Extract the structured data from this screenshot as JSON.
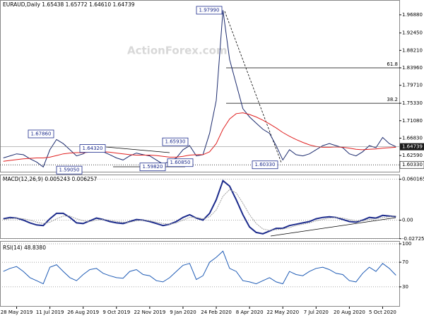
{
  "chart_data": [
    {
      "type": "line",
      "title": "EURAUD,Daily  1.65438 1.65772 1.64610 1.64739",
      "watermark": "ActionForex.com",
      "series": [
        {
          "name": "Close",
          "color": "#1c2b6e",
          "values": [
            1.62,
            1.625,
            1.63,
            1.628,
            1.618,
            1.61,
            1.598,
            1.64,
            1.665,
            1.655,
            1.64,
            1.625,
            1.63,
            1.64,
            1.643,
            1.635,
            1.628,
            1.62,
            1.615,
            1.625,
            1.632,
            1.628,
            1.625,
            1.615,
            1.605,
            1.612,
            1.62,
            1.64,
            1.65,
            1.625,
            1.628,
            1.68,
            1.76,
            1.9799,
            1.86,
            1.8,
            1.74,
            1.72,
            1.705,
            1.69,
            1.68,
            1.65,
            1.615,
            1.64,
            1.628,
            1.625,
            1.63,
            1.64,
            1.65,
            1.655,
            1.65,
            1.645,
            1.63,
            1.625,
            1.635,
            1.65,
            1.645,
            1.67,
            1.655,
            1.64739
          ]
        },
        {
          "name": "MA",
          "color": "#e02020",
          "values": [
            1.612,
            1.614,
            1.616,
            1.618,
            1.619,
            1.62,
            1.62,
            1.622,
            1.626,
            1.63,
            1.632,
            1.633,
            1.633,
            1.634,
            1.635,
            1.635,
            1.634,
            1.632,
            1.63,
            1.628,
            1.627,
            1.627,
            1.627,
            1.626,
            1.624,
            1.622,
            1.622,
            1.624,
            1.627,
            1.628,
            1.628,
            1.635,
            1.655,
            1.69,
            1.715,
            1.728,
            1.73,
            1.726,
            1.72,
            1.712,
            1.703,
            1.693,
            1.682,
            1.673,
            1.665,
            1.658,
            1.652,
            1.648,
            1.646,
            1.646,
            1.647,
            1.646,
            1.644,
            1.641,
            1.64,
            1.641,
            1.642,
            1.644,
            1.645,
            1.646
          ]
        }
      ],
      "ylim": [
        1.5865,
        2.0031
      ],
      "yticks": [
        {
          "value": 1.9688,
          "label": "1.96880"
        },
        {
          "value": 1.9245,
          "label": "1.92450"
        },
        {
          "value": 1.8821,
          "label": "1.88210"
        },
        {
          "value": 1.8396,
          "label": "1.83960"
        },
        {
          "value": 1.7971,
          "label": "1.79710"
        },
        {
          "value": 1.7533,
          "label": "1.75330"
        },
        {
          "value": 1.7108,
          "label": "1.71080"
        },
        {
          "value": 1.6683,
          "label": "1.66830"
        },
        {
          "value": 1.6259,
          "label": "1.62590"
        }
      ],
      "grid": false,
      "last_price": 1.64739,
      "support": {
        "value": 1.6033,
        "label": "1.60330"
      },
      "fib_levels": [
        {
          "value": 1.8396,
          "label": "61.8"
        },
        {
          "value": 1.7533,
          "label": "38.2"
        }
      ],
      "annotations": [
        {
          "value": 1.9799,
          "label": "1.97990"
        },
        {
          "value": 1.6786,
          "label": "1.67860"
        },
        {
          "value": 1.6432,
          "label": "1.64320"
        },
        {
          "value": 1.5905,
          "label": "1.59050"
        },
        {
          "value": 1.5982,
          "label": "1.59820"
        },
        {
          "value": 1.6085,
          "label": "1.60850"
        },
        {
          "value": 1.6593,
          "label": "1.65930"
        },
        {
          "value": 1.6033,
          "label": "1.60330"
        }
      ]
    },
    {
      "type": "line",
      "title": "MACD(12,26,9) 0.005243 0.006257",
      "series": [
        {
          "name": "MACD",
          "color": "#1c2b8c",
          "values": [
            0.002,
            0.004,
            0.003,
            0.0,
            -0.004,
            -0.007,
            -0.008,
            0.002,
            0.01,
            0.01,
            0.004,
            -0.004,
            -0.005,
            -0.001,
            0.003,
            0.001,
            -0.002,
            -0.004,
            -0.005,
            -0.002,
            0.001,
            0.0,
            -0.002,
            -0.005,
            -0.008,
            -0.006,
            -0.002,
            0.004,
            0.008,
            0.003,
            0.0,
            0.01,
            0.03,
            0.058,
            0.05,
            0.03,
            0.008,
            -0.01,
            -0.018,
            -0.02,
            -0.016,
            -0.012,
            -0.012,
            -0.008,
            -0.006,
            -0.004,
            -0.002,
            0.002,
            0.004,
            0.005,
            0.004,
            0.001,
            -0.002,
            -0.003,
            0.0,
            0.004,
            0.003,
            0.007,
            0.006,
            0.005243
          ]
        },
        {
          "name": "Signal",
          "color": "#a0a0a0",
          "values": [
            0.001,
            0.002,
            0.003,
            0.002,
            0.0,
            -0.003,
            -0.005,
            -0.003,
            0.002,
            0.006,
            0.006,
            0.002,
            -0.001,
            -0.002,
            0.0,
            0.001,
            0.0,
            -0.002,
            -0.003,
            -0.003,
            -0.001,
            0.0,
            -0.001,
            -0.003,
            -0.005,
            -0.006,
            -0.004,
            0.0,
            0.004,
            0.004,
            0.002,
            0.005,
            0.015,
            0.035,
            0.045,
            0.04,
            0.025,
            0.008,
            -0.005,
            -0.013,
            -0.015,
            -0.014,
            -0.013,
            -0.011,
            -0.008,
            -0.006,
            -0.004,
            -0.001,
            0.001,
            0.003,
            0.004,
            0.003,
            0.001,
            -0.001,
            -0.001,
            0.001,
            0.002,
            0.004,
            0.005,
            0.006257
          ]
        }
      ],
      "ylim": [
        -0.0275,
        0.066
      ],
      "yticks": [
        0.060165,
        {
          "value": 0,
          "label": "0.00"
        },
        -0.02725
      ],
      "grid": true
    },
    {
      "type": "line",
      "title": "RSI(14) 48.8380",
      "categories": [
        null,
        null,
        "28 May 2019",
        null,
        null,
        null,
        null,
        "11 Jul 2019",
        null,
        null,
        null,
        null,
        "26 Aug 2019",
        null,
        null,
        null,
        null,
        "9 Oct 2019",
        null,
        null,
        null,
        null,
        "22 Nov 2019",
        null,
        null,
        null,
        null,
        "9 Jan 2020",
        null,
        null,
        null,
        null,
        "24 Feb 2020",
        null,
        null,
        null,
        null,
        "8 Apr 2020",
        null,
        null,
        null,
        null,
        "22 May 2020",
        null,
        null,
        null,
        null,
        "7 Jul 2020",
        null,
        null,
        null,
        null,
        "20 Aug 2020",
        null,
        null,
        null,
        null,
        "5 Oct 2020",
        null,
        null
      ],
      "series": [
        {
          "name": "RSI",
          "color": "#1e5bb5",
          "values": [
            55,
            60,
            63,
            55,
            45,
            40,
            35,
            62,
            66,
            55,
            45,
            40,
            50,
            58,
            60,
            52,
            48,
            45,
            44,
            55,
            58,
            50,
            48,
            40,
            38,
            45,
            55,
            65,
            68,
            42,
            48,
            70,
            78,
            88,
            60,
            55,
            40,
            38,
            35,
            40,
            45,
            38,
            35,
            55,
            50,
            48,
            55,
            60,
            62,
            58,
            52,
            50,
            40,
            38,
            52,
            62,
            55,
            68,
            60,
            48.838
          ]
        }
      ],
      "ylim": [
        0,
        100
      ],
      "yticks": [
        100,
        70,
        30
      ],
      "grid": true
    }
  ]
}
